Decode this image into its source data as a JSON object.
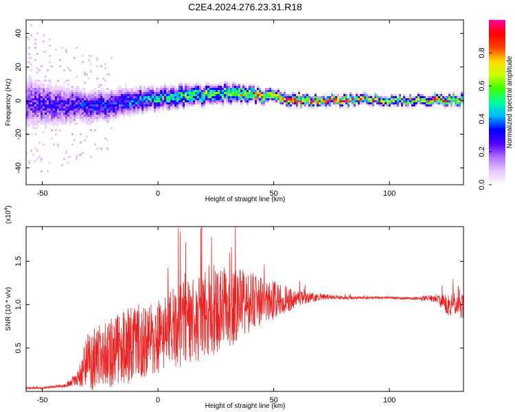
{
  "title": "C2E4.2024.276.23.31.R18",
  "colors": {
    "snr_line": "#ee2222",
    "colormap": [
      "#ffffff",
      "#e8c8ff",
      "#b070ff",
      "#5000ff",
      "#0000ff",
      "#00b8ff",
      "#00ffa0",
      "#40ff00",
      "#c8ff00",
      "#ffd800",
      "#ff4000",
      "#ff0000",
      "#ff00a0"
    ]
  },
  "chart_data": [
    {
      "type": "heatmap",
      "xlabel": "Height of straight line (km)",
      "ylabel": "Frequency (Hz)",
      "xlim": [
        -57,
        132
      ],
      "ylim": [
        -50,
        48
      ],
      "x_ticks": [
        -50,
        0,
        50,
        100
      ],
      "y_ticks": [
        -40,
        -20,
        0,
        20,
        40
      ],
      "colorbar": {
        "label": "Normalized spectral amplitude",
        "range": [
          0.0,
          1.0
        ],
        "ticks": [
          0.0,
          0.2,
          0.4,
          0.6,
          0.8
        ]
      },
      "ridge": {
        "x": [
          -57,
          -50,
          -40,
          -30,
          -20,
          -10,
          0,
          10,
          20,
          30,
          40,
          50,
          60,
          70,
          80,
          90,
          100,
          110,
          120,
          132
        ],
        "center_hz": [
          0,
          -2,
          -2,
          -3,
          -1,
          1,
          2,
          3,
          4,
          5,
          4,
          3,
          1,
          1,
          1,
          1,
          1,
          1,
          1,
          1
        ],
        "spread_hz": [
          14,
          12,
          10,
          9,
          8,
          7,
          6,
          6,
          5,
          5,
          4,
          3,
          3,
          2.5,
          2.5,
          2.5,
          2.5,
          2.5,
          2.5,
          3
        ],
        "peak_amplitude": [
          0.25,
          0.28,
          0.3,
          0.32,
          0.35,
          0.4,
          0.5,
          0.55,
          0.6,
          0.65,
          0.75,
          0.85,
          0.95,
          0.95,
          0.9,
          0.8,
          0.7,
          0.65,
          0.9,
          0.6
        ]
      }
    },
    {
      "type": "line",
      "xlabel": "Height of straight line (km)",
      "ylabel": "SNR (10 * v/v)",
      "y_multiplier_label": "(x10^4)",
      "xlim": [
        -57,
        132
      ],
      "ylim": [
        0,
        1.9
      ],
      "x_ticks": [
        -50,
        0,
        50,
        100
      ],
      "y_ticks": [
        0.5,
        1.0,
        1.5
      ],
      "series": [
        {
          "x": [
            -57,
            -50,
            -40,
            -35,
            -30,
            -25,
            -20,
            -15,
            -10,
            -5,
            0,
            5,
            10,
            15,
            20,
            25,
            30,
            35,
            40,
            45,
            50,
            55,
            60,
            65,
            70,
            75,
            80,
            90,
            100,
            110,
            120,
            125,
            130,
            132
          ],
          "y": [
            0.04,
            0.04,
            0.07,
            0.15,
            0.35,
            0.4,
            0.45,
            0.5,
            0.55,
            0.58,
            0.62,
            0.68,
            0.75,
            0.8,
            0.88,
            0.92,
            0.95,
            1.0,
            1.03,
            1.05,
            1.05,
            1.06,
            1.07,
            1.08,
            1.09,
            1.09,
            1.08,
            1.08,
            1.08,
            1.07,
            1.07,
            1.0,
            1.0,
            0.98
          ],
          "noise": [
            0.01,
            0.01,
            0.02,
            0.08,
            0.35,
            0.38,
            0.4,
            0.42,
            0.45,
            0.45,
            0.45,
            0.48,
            0.5,
            0.5,
            0.5,
            0.5,
            0.48,
            0.42,
            0.35,
            0.28,
            0.22,
            0.16,
            0.1,
            0.06,
            0.04,
            0.03,
            0.02,
            0.015,
            0.015,
            0.015,
            0.05,
            0.12,
            0.15,
            0.15
          ]
        }
      ]
    }
  ]
}
